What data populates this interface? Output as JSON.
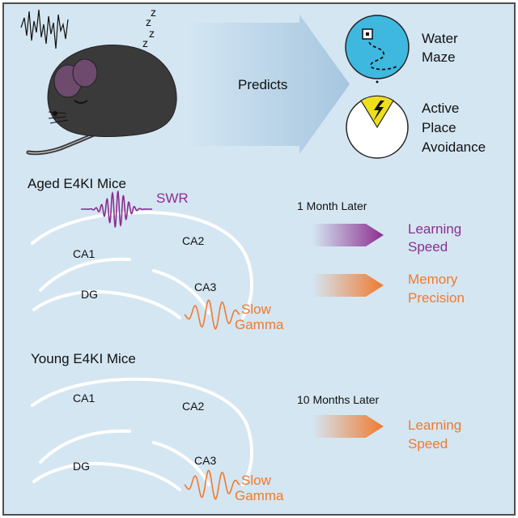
{
  "colors": {
    "background": "#d4e6f2",
    "border": "#4f4f4f",
    "purple": "#8b2f8f",
    "orange": "#f07a2e",
    "maze_blue": "#3fb8e0",
    "avoid_yellow": "#ecdf1f",
    "mouse": "#3a3a3a"
  },
  "top": {
    "sleep_z": [
      "z",
      "z",
      "z",
      "z"
    ],
    "predicts_label": "Predicts",
    "water_maze_line1": "Water",
    "water_maze_line2": "Maze",
    "active_line1": "Active",
    "active_line2": "Place",
    "active_line3": "Avoidance"
  },
  "aged": {
    "title": "Aged E4KI Mice",
    "swr_label": "SWR",
    "ca1": "CA1",
    "ca2": "CA2",
    "ca3": "CA3",
    "dg": "DG",
    "slow_line1": "Slow",
    "slow_line2": "Gamma",
    "later_label": "1 Month Later",
    "outcome1_line1": "Learning",
    "outcome1_line2": "Speed",
    "outcome2_line1": "Memory",
    "outcome2_line2": "Precision"
  },
  "young": {
    "title": "Young E4KI Mice",
    "ca1": "CA1",
    "ca2": "CA2",
    "ca3": "CA3",
    "dg": "DG",
    "slow_line1": "Slow",
    "slow_line2": "Gamma",
    "later_label": "10 Months Later",
    "outcome_line1": "Learning",
    "outcome_line2": "Speed"
  }
}
